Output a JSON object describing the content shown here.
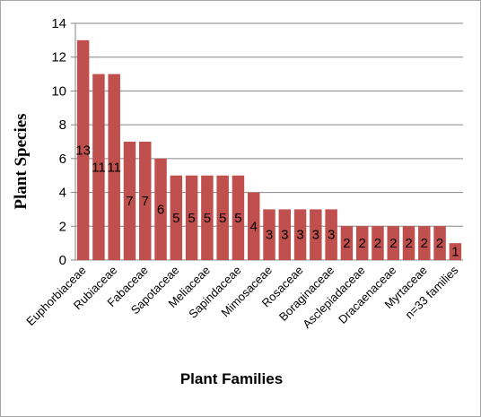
{
  "chart_data": {
    "type": "bar",
    "title": "",
    "xlabel": "Plant Families",
    "ylabel": "Plant Species",
    "ylim": [
      0,
      14
    ],
    "y_ticks": [
      "0",
      "2",
      "4",
      "6",
      "8",
      "10",
      "12",
      "14"
    ],
    "grid": true,
    "legend": "none",
    "bar_color": "#c0504d",
    "categories": [
      "Euphorbiaceae",
      "",
      "Rubiaceae",
      "",
      "Fabaceae",
      "",
      "Sapotaceae",
      "",
      "Meliaceae",
      "",
      "Sapindaceae",
      "",
      "Mimosaceae",
      "",
      "Rosaceae",
      "",
      "Boraginaceae",
      "",
      "Asclepiadaceae",
      "",
      "Dracaenaceae",
      "",
      "Myrtaceae",
      "",
      "n=33 families"
    ],
    "values": [
      13,
      11,
      11,
      7,
      7,
      6,
      5,
      5,
      5,
      5,
      5,
      4,
      3,
      3,
      3,
      3,
      3,
      2,
      2,
      2,
      2,
      2,
      2,
      2,
      1
    ]
  }
}
